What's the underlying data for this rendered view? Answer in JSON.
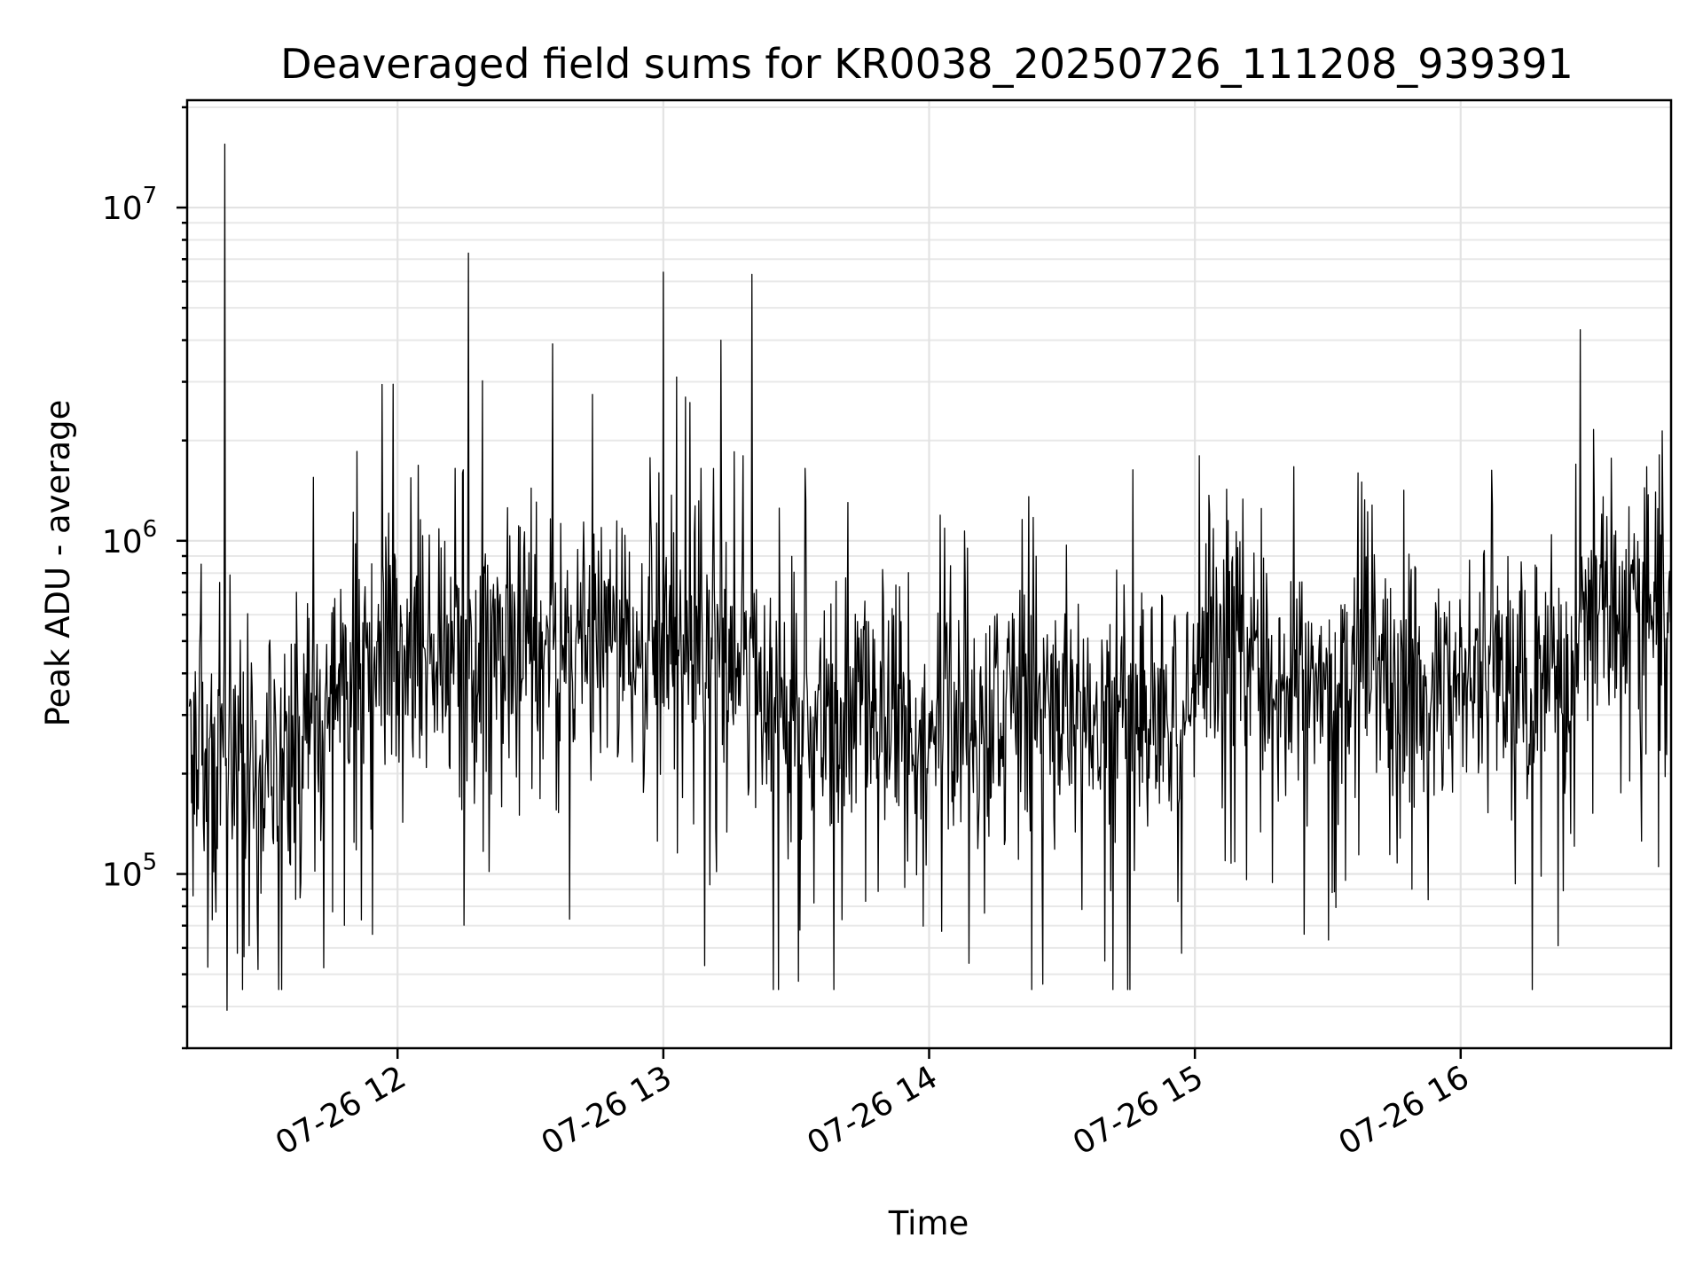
{
  "chart_data": {
    "type": "line",
    "title": "Deaveraged field sums for KR0038_20250726_111208_939391",
    "xlabel": "Time",
    "ylabel": "Peak ADU - average",
    "x_axis": {
      "kind": "time",
      "date": "2025-07-26",
      "xlim": [
        "2025-07-26T11:12:30",
        "2025-07-26T16:47:30"
      ],
      "ticks": [
        "2025-07-26T12:00",
        "2025-07-26T13:00",
        "2025-07-26T14:00",
        "2025-07-26T15:00",
        "2025-07-26T16:00"
      ],
      "tick_labels": [
        "07-26 12",
        "07-26 13",
        "07-26 14",
        "07-26 15",
        "07-26 16"
      ],
      "tick_label_rotation": 30
    },
    "y_axis": {
      "scale": "log",
      "ylim": [
        30000,
        21000000
      ],
      "ticks": [
        100000,
        1000000,
        10000000
      ],
      "tick_labels": [
        {
          "base": "10",
          "exp": "5"
        },
        {
          "base": "10",
          "exp": "6"
        },
        {
          "base": "10",
          "exp": "7"
        }
      ]
    },
    "grid": true,
    "grid_color": "#e3e3e3",
    "line_color": "#000000",
    "series": [
      {
        "samples_per_minute": 6,
        "baseline_knots": [
          {
            "t": "2025-07-26T11:13",
            "v": 260000
          },
          {
            "t": "2025-07-26T11:30",
            "v": 200000
          },
          {
            "t": "2025-07-26T11:45",
            "v": 360000
          },
          {
            "t": "2025-07-26T12:00",
            "v": 500000
          },
          {
            "t": "2025-07-26T12:30",
            "v": 470000
          },
          {
            "t": "2025-07-26T13:00",
            "v": 480000
          },
          {
            "t": "2025-07-26T13:20",
            "v": 430000
          },
          {
            "t": "2025-07-26T13:23",
            "v": 290000
          },
          {
            "t": "2025-07-26T14:00",
            "v": 280000
          },
          {
            "t": "2025-07-26T14:30",
            "v": 320000
          },
          {
            "t": "2025-07-26T14:59",
            "v": 310000
          },
          {
            "t": "2025-07-26T15:01",
            "v": 480000
          },
          {
            "t": "2025-07-26T15:12",
            "v": 460000
          },
          {
            "t": "2025-07-26T15:20",
            "v": 340000
          },
          {
            "t": "2025-07-26T15:40",
            "v": 380000
          },
          {
            "t": "2025-07-26T16:10",
            "v": 370000
          },
          {
            "t": "2025-07-26T16:25",
            "v": 400000
          },
          {
            "t": "2025-07-26T16:28",
            "v": 560000
          },
          {
            "t": "2025-07-26T16:47",
            "v": 640000
          }
        ],
        "spikes": [
          {
            "t": "2025-07-26T11:21",
            "v": 15500000
          },
          {
            "t": "2025-07-26T12:16",
            "v": 7300000
          },
          {
            "t": "2025-07-26T13:00",
            "v": 6400000
          },
          {
            "t": "2025-07-26T13:20",
            "v": 6300000
          },
          {
            "t": "2025-07-26T16:27",
            "v": 4300000
          },
          {
            "t": "2025-07-26T12:35",
            "v": 3900000
          },
          {
            "t": "2025-07-26T13:13",
            "v": 4000000
          },
          {
            "t": "2025-07-26T11:59",
            "v": 2950000
          },
          {
            "t": "2025-07-26T13:03",
            "v": 3100000
          },
          {
            "t": "2025-07-26T13:05",
            "v": 2700000
          },
          {
            "t": "2025-07-26T12:44",
            "v": 2750000
          },
          {
            "t": "2025-07-26T13:06",
            "v": 2600000
          },
          {
            "t": "2025-07-26T13:16",
            "v": 1850000
          },
          {
            "t": "2025-07-26T13:18",
            "v": 1800000
          },
          {
            "t": "2025-07-26T13:32",
            "v": 1650000
          },
          {
            "t": "2025-07-26T15:01",
            "v": 1800000
          },
          {
            "t": "2025-07-26T12:13",
            "v": 1650000
          },
          {
            "t": "2025-07-26T11:41",
            "v": 1550000
          },
          {
            "t": "2025-07-26T12:59",
            "v": 1600000
          },
          {
            "t": "2025-07-26T16:44",
            "v": 1400000
          },
          {
            "t": "2025-07-26T15:15",
            "v": 1250000
          },
          {
            "t": "2025-07-26T11:21",
            "v": 39000,
            "offset_sec": 30
          }
        ],
        "min_value": 45000
      }
    ]
  }
}
